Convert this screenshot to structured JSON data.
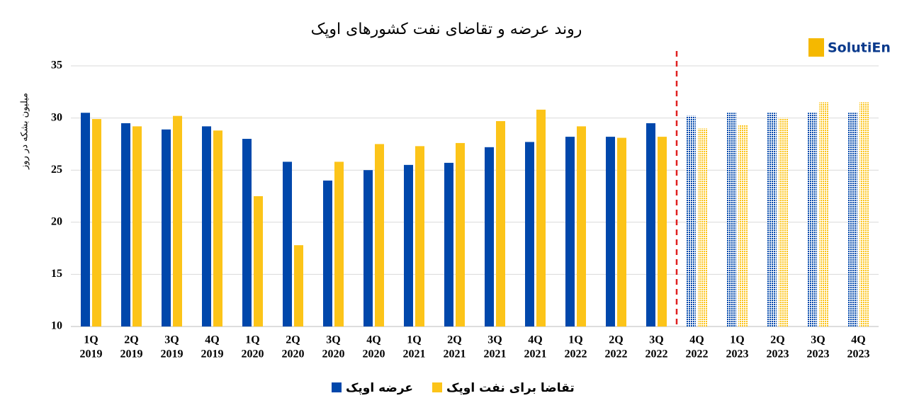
{
  "chart_data": {
    "type": "bar",
    "title": "روند عرضه و تقاضای نفت کشورهای اوپک",
    "logo": "SolutiEn",
    "y_label": "میلیون بشکه در روز",
    "categories": [
      [
        "1Q",
        "2019"
      ],
      [
        "2Q",
        "2019"
      ],
      [
        "3Q",
        "2019"
      ],
      [
        "4Q",
        "2019"
      ],
      [
        "1Q",
        "2020"
      ],
      [
        "2Q",
        "2020"
      ],
      [
        "3Q",
        "2020"
      ],
      [
        "4Q",
        "2020"
      ],
      [
        "1Q",
        "2021"
      ],
      [
        "2Q",
        "2021"
      ],
      [
        "3Q",
        "2021"
      ],
      [
        "4Q",
        "2021"
      ],
      [
        "1Q",
        "2022"
      ],
      [
        "2Q",
        "2022"
      ],
      [
        "3Q",
        "2022"
      ],
      [
        "4Q",
        "2022"
      ],
      [
        "1Q",
        "2023"
      ],
      [
        "2Q",
        "2023"
      ],
      [
        "3Q",
        "2023"
      ],
      [
        "4Q",
        "2023"
      ]
    ],
    "series": [
      {
        "name": "عرضه اوپک",
        "color": "#0047ab",
        "values": [
          30.5,
          29.5,
          28.9,
          29.2,
          28.0,
          25.8,
          24.0,
          25.0,
          25.5,
          25.7,
          27.2,
          27.7,
          28.2,
          28.2,
          29.5,
          30.2,
          30.5,
          30.5,
          30.5,
          30.5
        ]
      },
      {
        "name": "تقاضا برای نفت اوپک",
        "color": "#fcc419",
        "values": [
          29.9,
          29.2,
          30.2,
          28.8,
          22.5,
          17.8,
          25.8,
          27.5,
          27.3,
          27.6,
          29.7,
          30.8,
          29.2,
          28.1,
          28.2,
          29.0,
          29.3,
          30.0,
          31.5,
          31.5
        ]
      }
    ],
    "forecast_start_index": 15,
    "ylim": [
      10,
      35
    ],
    "yticks": [
      10,
      15,
      20,
      25,
      30,
      35
    ],
    "grid": true,
    "legend": "bottom"
  }
}
